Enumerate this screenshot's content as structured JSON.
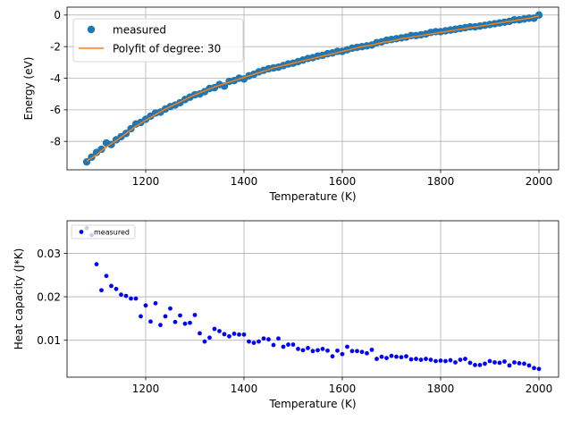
{
  "chart_data": [
    {
      "type": "scatter",
      "xlabel": "Temperature (K)",
      "ylabel": "Energy (eV)",
      "xlim": [
        1040,
        2040
      ],
      "ylim": [
        -9.8,
        0.5
      ],
      "xticks": [
        1200,
        1400,
        1600,
        1800,
        2000
      ],
      "yticks": [
        -8,
        -6,
        -4,
        -2,
        0
      ],
      "grid": true,
      "legend_position": "top-left",
      "series": [
        {
          "name": "measured",
          "kind": "scatter",
          "color": "#1f77b4",
          "x": [
            1080,
            1090,
            1100,
            1110,
            1120,
            1130,
            1140,
            1150,
            1160,
            1170,
            1180,
            1190,
            1200,
            1210,
            1220,
            1230,
            1240,
            1250,
            1260,
            1270,
            1280,
            1290,
            1300,
            1310,
            1320,
            1330,
            1340,
            1350,
            1360,
            1370,
            1380,
            1390,
            1400,
            1410,
            1420,
            1430,
            1440,
            1450,
            1460,
            1470,
            1480,
            1490,
            1500,
            1510,
            1520,
            1530,
            1540,
            1550,
            1560,
            1570,
            1580,
            1590,
            1600,
            1610,
            1620,
            1630,
            1640,
            1650,
            1660,
            1670,
            1680,
            1690,
            1700,
            1710,
            1720,
            1730,
            1740,
            1750,
            1760,
            1770,
            1780,
            1790,
            1800,
            1810,
            1820,
            1830,
            1840,
            1850,
            1860,
            1870,
            1880,
            1890,
            1900,
            1910,
            1920,
            1930,
            1940,
            1950,
            1960,
            1970,
            1980,
            1990,
            2000
          ],
          "y": [
            -9.3,
            -9.0,
            -8.7,
            -8.5,
            -8.1,
            -8.2,
            -7.9,
            -7.7,
            -7.5,
            -7.2,
            -6.9,
            -6.8,
            -6.6,
            -6.4,
            -6.2,
            -6.15,
            -5.95,
            -5.8,
            -5.7,
            -5.55,
            -5.35,
            -5.2,
            -5.05,
            -5.0,
            -4.85,
            -4.65,
            -4.6,
            -4.4,
            -4.5,
            -4.2,
            -4.15,
            -4.0,
            -4.05,
            -3.85,
            -3.75,
            -3.6,
            -3.5,
            -3.4,
            -3.35,
            -3.3,
            -3.2,
            -3.1,
            -3.05,
            -2.95,
            -2.85,
            -2.75,
            -2.7,
            -2.6,
            -2.55,
            -2.45,
            -2.4,
            -2.3,
            -2.3,
            -2.2,
            -2.1,
            -2.05,
            -2.0,
            -1.95,
            -1.9,
            -1.75,
            -1.7,
            -1.6,
            -1.55,
            -1.5,
            -1.45,
            -1.4,
            -1.3,
            -1.3,
            -1.25,
            -1.2,
            -1.1,
            -1.05,
            -1.05,
            -1.0,
            -0.95,
            -0.9,
            -0.85,
            -0.8,
            -0.75,
            -0.75,
            -0.7,
            -0.65,
            -0.6,
            -0.55,
            -0.5,
            -0.45,
            -0.4,
            -0.3,
            -0.3,
            -0.25,
            -0.2,
            -0.2,
            0.0
          ]
        },
        {
          "name": "Polyfit of degree: 30",
          "kind": "line",
          "color": "#ff7f0e",
          "x": [
            1080,
            1100,
            1120,
            1140,
            1160,
            1180,
            1200,
            1220,
            1240,
            1260,
            1280,
            1300,
            1320,
            1340,
            1360,
            1380,
            1400,
            1420,
            1440,
            1460,
            1480,
            1500,
            1520,
            1540,
            1560,
            1580,
            1600,
            1620,
            1640,
            1660,
            1680,
            1700,
            1720,
            1740,
            1760,
            1780,
            1800,
            1820,
            1840,
            1860,
            1880,
            1900,
            1920,
            1940,
            1960,
            1980,
            2000
          ],
          "y": [
            -9.25,
            -8.85,
            -8.35,
            -7.95,
            -7.5,
            -7.05,
            -6.65,
            -6.3,
            -5.95,
            -5.65,
            -5.35,
            -5.05,
            -4.8,
            -4.55,
            -4.35,
            -4.15,
            -3.95,
            -3.75,
            -3.55,
            -3.35,
            -3.2,
            -3.05,
            -2.9,
            -2.75,
            -2.6,
            -2.45,
            -2.3,
            -2.15,
            -2.0,
            -1.9,
            -1.75,
            -1.65,
            -1.5,
            -1.4,
            -1.3,
            -1.2,
            -1.1,
            -1.0,
            -0.9,
            -0.8,
            -0.7,
            -0.6,
            -0.5,
            -0.4,
            -0.3,
            -0.2,
            -0.05
          ]
        }
      ]
    },
    {
      "type": "scatter",
      "xlabel": "Temperature (K)",
      "ylabel": "Heat capacity (J*K)",
      "xlim": [
        1040,
        2040
      ],
      "ylim": [
        0.0015,
        0.0375
      ],
      "xticks": [
        1200,
        1400,
        1600,
        1800,
        2000
      ],
      "yticks": [
        0.01,
        0.02,
        0.03
      ],
      "ytick_labels": [
        "0.01",
        "0.02",
        "0.03"
      ],
      "grid": true,
      "legend_position": "top-left",
      "series": [
        {
          "name": "measured",
          "kind": "scatter",
          "color": "#0000ff",
          "x": [
            1080,
            1090,
            1100,
            1110,
            1120,
            1130,
            1140,
            1150,
            1160,
            1170,
            1180,
            1190,
            1200,
            1210,
            1220,
            1230,
            1240,
            1250,
            1260,
            1270,
            1280,
            1290,
            1300,
            1310,
            1320,
            1330,
            1340,
            1350,
            1360,
            1370,
            1380,
            1390,
            1400,
            1410,
            1420,
            1430,
            1440,
            1450,
            1460,
            1470,
            1480,
            1490,
            1500,
            1510,
            1520,
            1530,
            1540,
            1550,
            1560,
            1570,
            1580,
            1590,
            1600,
            1610,
            1620,
            1630,
            1640,
            1650,
            1660,
            1670,
            1680,
            1690,
            1700,
            1710,
            1720,
            1730,
            1740,
            1750,
            1760,
            1770,
            1780,
            1790,
            1800,
            1810,
            1820,
            1830,
            1840,
            1850,
            1860,
            1870,
            1880,
            1890,
            1900,
            1910,
            1920,
            1930,
            1940,
            1950,
            1960,
            1970,
            1980,
            1990,
            2000
          ],
          "y": [
            0.0358,
            0.0342,
            0.0275,
            0.0215,
            0.0248,
            0.0225,
            0.0218,
            0.0205,
            0.0202,
            0.0196,
            0.0196,
            0.0155,
            0.018,
            0.0143,
            0.0185,
            0.0135,
            0.0155,
            0.0173,
            0.0142,
            0.0157,
            0.0138,
            0.014,
            0.0158,
            0.0116,
            0.0097,
            0.0106,
            0.0126,
            0.0121,
            0.0114,
            0.0109,
            0.0115,
            0.0113,
            0.0113,
            0.0097,
            0.0094,
            0.0097,
            0.0104,
            0.0102,
            0.0089,
            0.0104,
            0.0085,
            0.009,
            0.009,
            0.008,
            0.0077,
            0.0082,
            0.0075,
            0.0077,
            0.008,
            0.0076,
            0.0063,
            0.0076,
            0.0068,
            0.0085,
            0.0075,
            0.0075,
            0.0073,
            0.007,
            0.0078,
            0.0057,
            0.0062,
            0.0059,
            0.0064,
            0.0062,
            0.0061,
            0.0063,
            0.0056,
            0.0057,
            0.0055,
            0.0057,
            0.0055,
            0.0052,
            0.0053,
            0.0052,
            0.0054,
            0.0049,
            0.0055,
            0.0057,
            0.0048,
            0.0043,
            0.0043,
            0.0046,
            0.0052,
            0.0049,
            0.0048,
            0.0051,
            0.0042,
            0.0049,
            0.0047,
            0.0046,
            0.0042,
            0.0036,
            0.0034
          ]
        }
      ]
    }
  ]
}
